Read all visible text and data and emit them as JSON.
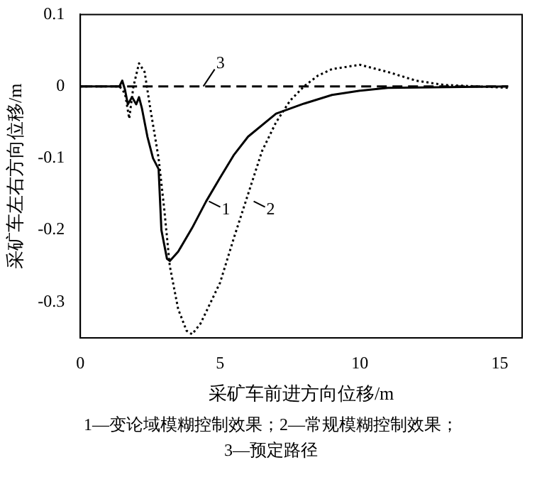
{
  "chart_data": {
    "type": "line",
    "xlabel": "采矿车前进方向位移/m",
    "ylabel": "采矿车左右方向位移/m",
    "xlim": [
      0,
      15.8
    ],
    "ylim": [
      -0.35,
      0.1
    ],
    "xticks": [
      0,
      5,
      10,
      15
    ],
    "yticks": [
      0.1,
      0,
      -0.1,
      -0.2,
      -0.3
    ],
    "grid": false,
    "legend": false,
    "marker": "none",
    "series": [
      {
        "color": "#000000",
        "line_style": "solid",
        "x": [
          0,
          1.4,
          1.5,
          1.6,
          1.7,
          1.85,
          2.0,
          2.1,
          2.2,
          2.4,
          2.6,
          2.8,
          2.9,
          3.1,
          3.2,
          3.5,
          4,
          4.5,
          5,
          5.5,
          6,
          7,
          8,
          9,
          10,
          11,
          15.3
        ],
        "values": [
          0,
          0,
          0.008,
          -0.005,
          -0.025,
          -0.015,
          -0.025,
          -0.015,
          -0.03,
          -0.07,
          -0.1,
          -0.115,
          -0.2,
          -0.24,
          -0.243,
          -0.23,
          -0.197,
          -0.16,
          -0.127,
          -0.095,
          -0.07,
          -0.038,
          -0.024,
          -0.012,
          -0.006,
          -0.002,
          0
        ]
      },
      {
        "color": "#000000",
        "line_style": "dotted",
        "x": [
          0,
          1.4,
          1.6,
          1.75,
          1.9,
          2.1,
          2.3,
          2.5,
          2.8,
          3.0,
          3.2,
          3.5,
          3.8,
          4.0,
          4.3,
          5,
          5.5,
          6,
          6.5,
          7,
          7.5,
          8,
          8.5,
          9,
          10,
          11,
          12,
          13,
          15.3
        ],
        "values": [
          0,
          0,
          -0.01,
          -0.045,
          0,
          0.032,
          0.02,
          -0.03,
          -0.1,
          -0.17,
          -0.25,
          -0.31,
          -0.34,
          -0.345,
          -0.33,
          -0.273,
          -0.21,
          -0.15,
          -0.09,
          -0.05,
          -0.02,
          0,
          0.015,
          0.024,
          0.03,
          0.02,
          0.008,
          0.002,
          -0.002
        ]
      },
      {
        "color": "#000000",
        "line_style": "dashed",
        "x": [
          0,
          15.3
        ],
        "values": [
          0,
          0
        ]
      }
    ],
    "annotations": [
      {
        "text": "1",
        "x": 4.6,
        "y": -0.16
      },
      {
        "text": "2",
        "x": 6.2,
        "y": -0.16
      },
      {
        "text": "3",
        "x": 4.4,
        "y": 0
      },
      "1—变论域模糊控制效果；2—常规模糊控制效果；",
      "3—预定路径"
    ]
  }
}
